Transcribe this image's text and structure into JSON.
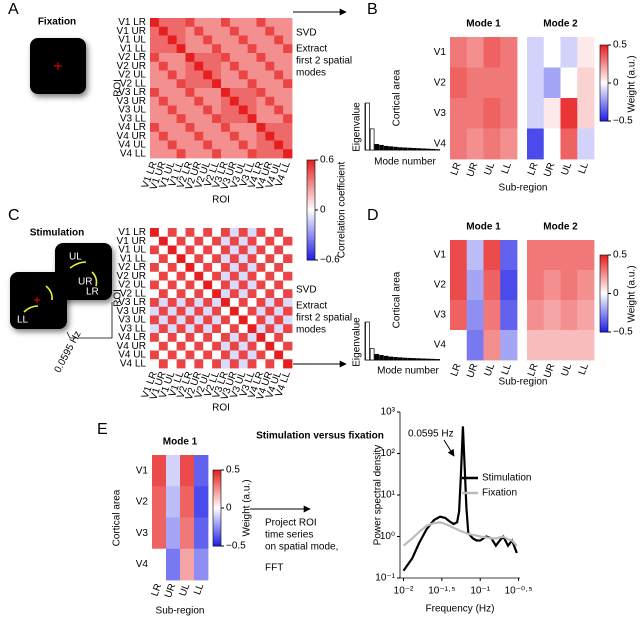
{
  "annotations": {
    "letters": [
      "A",
      "B",
      "C",
      "D",
      "E"
    ],
    "fixation_title": "Fixation",
    "stimulation_title": "Stimulation",
    "stimulus_labels": [
      "UL",
      "UR",
      "LR",
      "LL"
    ],
    "stimulus_frequency": "0.0595 Hz",
    "svd_top": [
      "SVD",
      "Extract",
      "first 2 spatial",
      "modes"
    ],
    "svd_bottom": [
      "SVD",
      "Extract",
      "first 2 spatial",
      "modes"
    ],
    "panel_e_title": "Stimulation versus fixation",
    "projection_steps": [
      "Project ROI",
      "time series",
      "on spatial mode,",
      "FFT"
    ]
  },
  "chart_data": [
    {
      "type": "heatmap",
      "categories": [
        "V1 LR",
        "V1 UR",
        "V1 UL",
        "V1 LL",
        "V2 LR",
        "V2 UR",
        "V2 UL",
        "V2 LL",
        "V3 LR",
        "V3 UR",
        "V3 UL",
        "V3 LL",
        "V4 LR",
        "V4 UR",
        "V4 UL",
        "V4 LL"
      ],
      "rows": [
        "V1 LR",
        "V1 UR",
        "V1 UL",
        "V1 LL",
        "V2 LR",
        "V2 UR",
        "V2 UL",
        "V2 LL",
        "V3 LR",
        "V3 UR",
        "V3 UL",
        "V3 LL",
        "V4 LR",
        "V4 UR",
        "V4 UL",
        "V4 LL"
      ],
      "xlabel": "ROI",
      "ylabel": "ROI",
      "clim": [
        -0.6,
        0.6
      ],
      "colorbar_label": "Correlation coefficient",
      "colorbar_ticks": [
        0.6,
        0,
        {
          "value": -0.6,
          "label": "−0.6"
        }
      ],
      "values": [
        [
          1,
          0.4,
          0.4,
          0.4,
          0.5,
          0.3,
          0.3,
          0.3,
          0.5,
          0.3,
          0.3,
          0.3,
          0.5,
          0.3,
          0.3,
          0.3
        ],
        [
          0.4,
          1,
          0.4,
          0.4,
          0.3,
          0.5,
          0.3,
          0.3,
          0.3,
          0.5,
          0.3,
          0.3,
          0.3,
          0.5,
          0.3,
          0.3
        ],
        [
          0.4,
          0.4,
          1,
          0.4,
          0.3,
          0.3,
          0.5,
          0.3,
          0.3,
          0.3,
          0.5,
          0.3,
          0.3,
          0.3,
          0.5,
          0.3
        ],
        [
          0.4,
          0.4,
          0.4,
          1,
          0.3,
          0.3,
          0.3,
          0.5,
          0.3,
          0.3,
          0.3,
          0.5,
          0.3,
          0.3,
          0.3,
          0.5
        ],
        [
          0.5,
          0.3,
          0.3,
          0.3,
          1,
          0.4,
          0.4,
          0.4,
          0.5,
          0.3,
          0.3,
          0.3,
          0.5,
          0.3,
          0.3,
          0.3
        ],
        [
          0.3,
          0.5,
          0.3,
          0.3,
          0.4,
          1,
          0.4,
          0.4,
          0.3,
          0.5,
          0.3,
          0.3,
          0.3,
          0.5,
          0.3,
          0.3
        ],
        [
          0.3,
          0.3,
          0.5,
          0.3,
          0.4,
          0.4,
          1,
          0.4,
          0.3,
          0.3,
          0.5,
          0.3,
          0.3,
          0.3,
          0.5,
          0.3
        ],
        [
          0.3,
          0.3,
          0.3,
          0.5,
          0.4,
          0.4,
          0.4,
          1,
          0.3,
          0.3,
          0.3,
          0.5,
          0.3,
          0.3,
          0.3,
          0.5
        ],
        [
          0.5,
          0.3,
          0.3,
          0.3,
          0.5,
          0.3,
          0.3,
          0.3,
          1,
          0.4,
          0.4,
          0.4,
          0.5,
          0.3,
          0.3,
          0.3
        ],
        [
          0.3,
          0.5,
          0.3,
          0.3,
          0.3,
          0.5,
          0.3,
          0.3,
          0.4,
          1,
          0.4,
          0.4,
          0.3,
          0.5,
          0.3,
          0.3
        ],
        [
          0.3,
          0.3,
          0.5,
          0.3,
          0.3,
          0.3,
          0.5,
          0.3,
          0.4,
          0.4,
          1,
          0.4,
          0.3,
          0.3,
          0.5,
          0.3
        ],
        [
          0.3,
          0.3,
          0.3,
          0.5,
          0.3,
          0.3,
          0.3,
          0.5,
          0.4,
          0.4,
          0.4,
          1,
          0.3,
          0.3,
          0.3,
          0.5
        ],
        [
          0.5,
          0.3,
          0.3,
          0.3,
          0.5,
          0.3,
          0.3,
          0.3,
          0.5,
          0.3,
          0.3,
          0.3,
          1,
          0.4,
          0.4,
          0.4
        ],
        [
          0.3,
          0.5,
          0.3,
          0.3,
          0.3,
          0.5,
          0.3,
          0.3,
          0.3,
          0.5,
          0.3,
          0.3,
          0.4,
          1,
          0.4,
          0.4
        ],
        [
          0.3,
          0.3,
          0.5,
          0.3,
          0.3,
          0.3,
          0.5,
          0.3,
          0.3,
          0.3,
          0.5,
          0.3,
          0.4,
          0.4,
          1,
          0.4
        ],
        [
          0.3,
          0.3,
          0.3,
          0.5,
          0.3,
          0.3,
          0.3,
          0.5,
          0.3,
          0.3,
          0.3,
          0.5,
          0.4,
          0.4,
          0.4,
          1
        ]
      ]
    },
    {
      "type": "heatmap",
      "categories": [
        "V1 LR",
        "V1 UR",
        "V1 UL",
        "V1 LL",
        "V2 LR",
        "V2 UR",
        "V2 UL",
        "V2 LL",
        "V3 LR",
        "V3 UR",
        "V3 UL",
        "V3 LL",
        "V4 LR",
        "V4 UR",
        "V4 UL",
        "V4 LL"
      ],
      "rows": [
        "V1 LR",
        "V1 UR",
        "V1 UL",
        "V1 LL",
        "V2 LR",
        "V2 UR",
        "V2 UL",
        "V2 LL",
        "V3 LR",
        "V3 UR",
        "V3 UL",
        "V3 LL",
        "V4 LR",
        "V4 UR",
        "V4 UL",
        "V4 LL"
      ],
      "xlabel": "ROI",
      "ylabel": "ROI",
      "clim": [
        -0.6,
        0.6
      ],
      "values": [
        [
          1,
          0,
          0.5,
          0,
          0.5,
          0,
          0.5,
          0,
          0.5,
          -0.1,
          0.5,
          -0.1,
          0.5,
          0,
          0.5,
          0
        ],
        [
          0,
          1,
          0,
          0.5,
          0,
          0.5,
          0,
          0.5,
          -0.1,
          0.5,
          -0.1,
          0.5,
          0,
          0.5,
          0,
          0.5
        ],
        [
          0.5,
          0,
          1,
          0,
          0.5,
          0,
          0.5,
          0,
          0.5,
          -0.1,
          0.5,
          -0.1,
          0.5,
          0,
          0.5,
          0
        ],
        [
          0,
          0.5,
          0,
          1,
          0,
          0.5,
          0,
          0.5,
          -0.1,
          0.5,
          -0.1,
          0.5,
          0,
          0.5,
          0,
          0.5
        ],
        [
          0.5,
          0,
          0.5,
          0,
          1,
          0,
          0.5,
          0,
          0.5,
          -0.1,
          0.5,
          -0.1,
          0.5,
          0,
          0.5,
          0
        ],
        [
          0,
          0.5,
          0,
          0.5,
          0,
          1,
          0,
          0.5,
          -0.1,
          0.5,
          -0.1,
          0.5,
          0,
          0.5,
          0,
          0.5
        ],
        [
          0.5,
          0,
          0.5,
          0,
          0.5,
          0,
          1,
          0,
          0.5,
          -0.1,
          0.5,
          -0.1,
          0.5,
          0,
          0.5,
          0
        ],
        [
          0,
          0.5,
          0,
          0.5,
          0,
          0.5,
          0,
          1,
          -0.1,
          0.5,
          -0.1,
          0.5,
          0,
          0.5,
          0,
          0.5
        ],
        [
          0.5,
          -0.1,
          0.5,
          -0.1,
          0.5,
          -0.1,
          0.5,
          -0.1,
          1,
          0,
          0.5,
          0,
          0.5,
          -0.1,
          0.5,
          -0.1
        ],
        [
          -0.1,
          0.5,
          -0.1,
          0.5,
          -0.1,
          0.5,
          -0.1,
          0.5,
          0,
          1,
          0,
          0.5,
          -0.1,
          0.5,
          -0.1,
          0.5
        ],
        [
          0.5,
          -0.1,
          0.5,
          -0.1,
          0.5,
          -0.1,
          0.5,
          -0.1,
          0.5,
          0,
          1,
          0,
          0.5,
          -0.1,
          0.5,
          -0.1
        ],
        [
          -0.1,
          0.5,
          -0.1,
          0.5,
          -0.1,
          0.5,
          -0.1,
          0.5,
          0,
          0.5,
          0,
          1,
          -0.1,
          0.5,
          -0.1,
          0.5
        ],
        [
          0.5,
          0,
          0.5,
          0,
          0.5,
          0,
          0.5,
          0,
          0.5,
          -0.1,
          0.5,
          -0.1,
          1,
          0,
          0.5,
          0
        ],
        [
          0,
          0.5,
          0,
          0.5,
          0,
          0.5,
          0,
          0.5,
          -0.1,
          0.5,
          -0.1,
          0.5,
          0,
          1,
          0,
          0.5
        ],
        [
          0.5,
          0,
          0.5,
          0,
          0.5,
          0,
          0.5,
          0,
          0.5,
          -0.1,
          0.5,
          -0.1,
          0.5,
          0,
          1,
          0
        ],
        [
          0,
          0.5,
          0,
          0.5,
          0,
          0.5,
          0,
          0.5,
          -0.1,
          0.5,
          -0.1,
          0.5,
          0,
          0.5,
          0,
          1
        ]
      ]
    },
    {
      "type": "heatmap",
      "title": "Mode 1",
      "categories": [
        "LR",
        "UR",
        "UL",
        "LL"
      ],
      "rows": [
        "V1",
        "V2",
        "V3",
        "V4"
      ],
      "xlabel": "Sub-region",
      "ylabel": "Cortical area",
      "clim": [
        -0.5,
        0.5
      ],
      "values": [
        [
          0.3,
          0.25,
          0.35,
          0.3
        ],
        [
          0.35,
          0.3,
          0.3,
          0.3
        ],
        [
          0.3,
          0.3,
          0.35,
          0.3
        ],
        [
          0.3,
          0.25,
          0.3,
          0.25
        ]
      ]
    },
    {
      "type": "heatmap",
      "title": "Mode 2",
      "categories": [
        "LR",
        "UR",
        "UL",
        "LL"
      ],
      "clim": [
        -0.5,
        0.5
      ],
      "colorbar_label": "Weight (a.u.)",
      "colorbar_ticks": [
        0.5,
        0,
        {
          "value": -0.5,
          "label": "−0.5"
        }
      ],
      "values": [
        [
          -0.1,
          0,
          -0.1,
          0.05
        ],
        [
          -0.1,
          -0.2,
          0,
          0.1
        ],
        [
          -0.1,
          0.05,
          0.45,
          0.1
        ],
        [
          -0.4,
          0,
          0.35,
          -0.1
        ]
      ]
    },
    {
      "type": "heatmap",
      "title": "Mode 1",
      "categories": [
        "LR",
        "UR",
        "UL",
        "LL"
      ],
      "rows": [
        "V1",
        "V2",
        "V3",
        "V4"
      ],
      "xlabel": "Sub-region",
      "ylabel": "Cortical area",
      "clim": [
        -0.5,
        0.5
      ],
      "values": [
        [
          0.4,
          -0.15,
          0.4,
          -0.35
        ],
        [
          0.4,
          -0.2,
          0.35,
          -0.4
        ],
        [
          0.35,
          -0.25,
          0.3,
          -0.35
        ],
        [
          0,
          -0.3,
          0.25,
          -0.2
        ]
      ]
    },
    {
      "type": "heatmap",
      "title": "Mode 2",
      "categories": [
        "LR",
        "UR",
        "UL",
        "LL"
      ],
      "clim": [
        -0.5,
        0.5
      ],
      "colorbar_label": "Weight (a.u.)",
      "colorbar_ticks": [
        0.5,
        0,
        {
          "value": -0.5,
          "label": "−0.5"
        }
      ],
      "values": [
        [
          0.3,
          0.3,
          0.3,
          0.3
        ],
        [
          0.3,
          0.25,
          0.3,
          0.25
        ],
        [
          0.25,
          0.2,
          0.25,
          0.2
        ],
        [
          0.15,
          0.15,
          0.15,
          0.15
        ]
      ]
    },
    {
      "type": "heatmap",
      "title": "Mode 1",
      "categories": [
        "LR",
        "UR",
        "UL",
        "LL"
      ],
      "rows": [
        "V1",
        "V2",
        "V3",
        "V4"
      ],
      "xlabel": "Sub-region",
      "ylabel": "Cortical area",
      "clim": [
        -0.5,
        0.5
      ],
      "colorbar_label": "Weight (a.u.)",
      "colorbar_ticks": [
        0.5,
        0,
        {
          "value": -0.5,
          "label": "−0.5"
        }
      ],
      "values": [
        [
          0.4,
          -0.1,
          0.4,
          -0.35
        ],
        [
          0.35,
          -0.15,
          0.35,
          -0.4
        ],
        [
          0.35,
          -0.2,
          0.3,
          -0.35
        ],
        [
          0,
          -0.3,
          0.2,
          -0.25
        ]
      ]
    },
    {
      "type": "bar",
      "xlabel": "Mode number",
      "ylabel": "Eigenvalue",
      "ylim": [
        0,
        1
      ],
      "values": [
        1,
        0.45,
        0.12,
        0.1,
        0.08,
        0.07,
        0.06,
        0.05,
        0.045,
        0.04,
        0.035,
        0.03,
        0.025,
        0.02,
        0.015,
        0.01
      ]
    },
    {
      "type": "bar",
      "xlabel": "Mode number",
      "ylabel": "Eigenvalue",
      "ylim": [
        0,
        1
      ],
      "values": [
        1,
        0.3,
        0.15,
        0.12,
        0.1,
        0.08,
        0.07,
        0.06,
        0.05,
        0.045,
        0.04,
        0.035,
        0.03,
        0.025,
        0.02,
        0.015
      ]
    },
    {
      "type": "line",
      "xlabel": "Frequency (Hz)",
      "ylabel": "Power spectral density",
      "annotation": "0.0595 Hz",
      "log_x": true,
      "log_y": true,
      "legend": "upper right",
      "xlim": [
        0.009,
        0.33
      ],
      "ylim": [
        0.1,
        1000
      ],
      "xticks": [
        {
          "value": 0.01,
          "label": "10⁻²"
        },
        {
          "value": 0.0316,
          "label": "10⁻¹·⁵"
        },
        {
          "value": 0.1,
          "label": "10⁻¹"
        },
        {
          "value": 0.316,
          "label": "10⁻⁰·⁵"
        }
      ],
      "yticks": [
        {
          "value": 0.1,
          "label": "10⁻¹"
        },
        {
          "value": 1,
          "label": "10⁰"
        },
        {
          "value": 10,
          "label": "10¹"
        },
        {
          "value": 100,
          "label": "10²"
        },
        {
          "value": 1000,
          "label": "10³"
        }
      ],
      "x": [
        0.01,
        0.013,
        0.016,
        0.02,
        0.025,
        0.03,
        0.035,
        0.04,
        0.045,
        0.05,
        0.053,
        0.056,
        0.0595,
        0.063,
        0.066,
        0.07,
        0.08,
        0.09,
        0.1,
        0.12,
        0.14,
        0.16,
        0.18,
        0.2,
        0.23,
        0.26,
        0.3
      ],
      "series": [
        {
          "name": "Stimulation",
          "color": "#000000",
          "values": [
            0.15,
            0.3,
            0.7,
            1.5,
            2.5,
            3,
            2.8,
            2.3,
            2,
            2.2,
            4,
            30,
            450,
            40,
            5,
            1.2,
            0.9,
            0.8,
            0.8,
            1,
            0.9,
            0.6,
            0.8,
            1,
            0.6,
            0.8,
            0.4
          ]
        },
        {
          "name": "Fixation",
          "color": "#bbbbbb",
          "values": [
            0.6,
            0.9,
            1.3,
            1.8,
            2.1,
            2.2,
            2,
            1.8,
            1.6,
            1.5,
            1.4,
            1.35,
            1.3,
            1.25,
            1.2,
            1.15,
            1.1,
            1.05,
            1,
            0.95,
            0.9,
            0.9,
            0.95,
            1,
            0.85,
            0.8,
            0.6
          ]
        }
      ]
    }
  ]
}
